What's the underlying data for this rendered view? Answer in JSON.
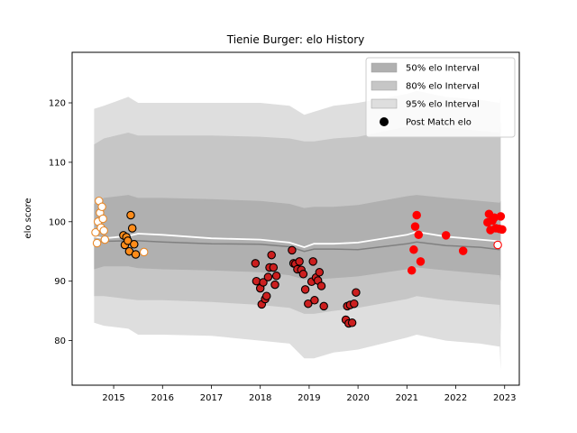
{
  "chart_data": {
    "type": "scatter",
    "title": "Tienie Burger: elo History",
    "xlabel": "",
    "ylabel": "elo score",
    "xlim": [
      2014.15,
      2023.3
    ],
    "ylim": [
      72.5,
      128.5
    ],
    "x_ticks": [
      2015,
      2016,
      2017,
      2018,
      2019,
      2020,
      2021,
      2022,
      2023
    ],
    "y_ticks": [
      80,
      90,
      100,
      110,
      120
    ],
    "legend_placement": "top-right",
    "legend": [
      {
        "label": "50% elo Interval",
        "swatch": "#b0b0b0"
      },
      {
        "label": "80% elo Interval",
        "swatch": "#c6c6c6"
      },
      {
        "label": "95% elo Interval",
        "swatch": "#dedede"
      },
      {
        "label": "Post Match elo",
        "swatch": "#000000"
      }
    ],
    "bands": {
      "x": [
        2014.6,
        2014.8,
        2015.3,
        2015.5,
        2016.0,
        2017.0,
        2018.0,
        2018.6,
        2018.9,
        2019.1,
        2019.5,
        2020.0,
        2021.0,
        2021.2,
        2021.8,
        2022.5,
        2022.9
      ],
      "p95": [
        [
          83.0,
          119.0
        ],
        [
          82.5,
          119.5
        ],
        [
          82.0,
          121.0
        ],
        [
          81.0,
          120.0
        ],
        [
          81.0,
          120.0
        ],
        [
          80.8,
          120.0
        ],
        [
          80.0,
          120.0
        ],
        [
          79.5,
          119.5
        ],
        [
          77.0,
          118.0
        ],
        [
          77.0,
          118.5
        ],
        [
          78.0,
          119.5
        ],
        [
          78.5,
          120.0
        ],
        [
          80.5,
          121.5
        ],
        [
          81.0,
          122.0
        ],
        [
          80.0,
          121.0
        ],
        [
          79.5,
          120.5
        ],
        [
          79.0,
          120.0
        ]
      ],
      "p80": [
        [
          87.5,
          113.0
        ],
        [
          87.5,
          114.0
        ],
        [
          87.0,
          115.0
        ],
        [
          86.8,
          114.5
        ],
        [
          86.8,
          114.5
        ],
        [
          86.5,
          114.5
        ],
        [
          86.0,
          114.3
        ],
        [
          85.5,
          114.0
        ],
        [
          84.5,
          113.5
        ],
        [
          84.5,
          113.5
        ],
        [
          85.0,
          114.0
        ],
        [
          85.5,
          114.3
        ],
        [
          87.0,
          116.0
        ],
        [
          87.5,
          116.5
        ],
        [
          86.8,
          115.8
        ],
        [
          86.3,
          115.3
        ],
        [
          86.0,
          115.0
        ]
      ],
      "p50": [
        [
          92.0,
          103.0
        ],
        [
          92.5,
          104.0
        ],
        [
          92.5,
          104.5
        ],
        [
          92.2,
          104.0
        ],
        [
          92.0,
          104.0
        ],
        [
          91.8,
          103.8
        ],
        [
          91.5,
          103.5
        ],
        [
          91.0,
          103.0
        ],
        [
          90.3,
          102.3
        ],
        [
          90.3,
          102.5
        ],
        [
          90.5,
          102.5
        ],
        [
          90.8,
          102.8
        ],
        [
          92.0,
          104.3
        ],
        [
          92.3,
          104.5
        ],
        [
          91.8,
          104.0
        ],
        [
          91.3,
          103.5
        ],
        [
          91.0,
          103.2
        ]
      ],
      "mean": [
        97.5,
        97.2,
        97.6,
        98.0,
        97.8,
        97.2,
        97.0,
        96.5,
        95.7,
        96.3,
        96.3,
        96.5,
        97.8,
        98.3,
        97.5,
        97.0,
        96.7
      ],
      "median": [
        96.5,
        96.7,
        96.8,
        96.8,
        96.6,
        96.3,
        96.2,
        95.8,
        95.0,
        95.4,
        95.4,
        95.3,
        96.3,
        96.6,
        96.0,
        95.7,
        95.3
      ],
      "end_spike": {
        "x": 2022.9,
        "p95": [
          75.0,
          121.0
        ],
        "p80": [
          81.0,
          117.0
        ],
        "p50": [
          90.0,
          103.5
        ]
      }
    },
    "series": [
      {
        "name": "Post Match elo",
        "points": [
          {
            "x": 2014.63,
            "y": 98.2,
            "c": "#ffffff",
            "e": "#e8892a"
          },
          {
            "x": 2014.66,
            "y": 96.4,
            "c": "#ffffff",
            "e": "#e8892a"
          },
          {
            "x": 2014.68,
            "y": 100.0,
            "c": "#ffffff",
            "e": "#e8892a"
          },
          {
            "x": 2014.7,
            "y": 103.5,
            "c": "#ffffff",
            "e": "#e8892a"
          },
          {
            "x": 2014.72,
            "y": 101.5,
            "c": "#ffffff",
            "e": "#e8892a"
          },
          {
            "x": 2014.74,
            "y": 99.0,
            "c": "#ffffff",
            "e": "#e8892a"
          },
          {
            "x": 2014.76,
            "y": 102.5,
            "c": "#ffffff",
            "e": "#e8892a"
          },
          {
            "x": 2014.78,
            "y": 100.5,
            "c": "#ffffff",
            "e": "#e8892a"
          },
          {
            "x": 2014.8,
            "y": 98.5,
            "c": "#ffffff",
            "e": "#e8892a"
          },
          {
            "x": 2014.82,
            "y": 97.0,
            "c": "#ffffff",
            "e": "#e8892a"
          },
          {
            "x": 2015.2,
            "y": 97.7,
            "c": "#ff8c1a",
            "e": "#000000"
          },
          {
            "x": 2015.23,
            "y": 96.1,
            "c": "#ff8c1a",
            "e": "#000000"
          },
          {
            "x": 2015.26,
            "y": 97.4,
            "c": "#ff8c1a",
            "e": "#000000"
          },
          {
            "x": 2015.29,
            "y": 96.8,
            "c": "#ff8c1a",
            "e": "#000000"
          },
          {
            "x": 2015.32,
            "y": 95.0,
            "c": "#ff8c1a",
            "e": "#000000"
          },
          {
            "x": 2015.35,
            "y": 101.1,
            "c": "#ff8c1a",
            "e": "#000000"
          },
          {
            "x": 2015.38,
            "y": 98.9,
            "c": "#ff8c1a",
            "e": "#000000"
          },
          {
            "x": 2015.42,
            "y": 96.2,
            "c": "#ff8c1a",
            "e": "#000000"
          },
          {
            "x": 2015.45,
            "y": 94.5,
            "c": "#ff8c1a",
            "e": "#000000"
          },
          {
            "x": 2015.62,
            "y": 94.9,
            "c": "#ffffff",
            "e": "#e8892a"
          },
          {
            "x": 2017.9,
            "y": 93.0,
            "c": "#cc1f1f",
            "e": "#000000"
          },
          {
            "x": 2017.92,
            "y": 90.0,
            "c": "#cc1f1f",
            "e": "#000000"
          },
          {
            "x": 2018.0,
            "y": 88.8,
            "c": "#cc1f1f",
            "e": "#000000"
          },
          {
            "x": 2018.03,
            "y": 86.1,
            "c": "#cc1f1f",
            "e": "#000000"
          },
          {
            "x": 2018.06,
            "y": 89.8,
            "c": "#cc1f1f",
            "e": "#000000"
          },
          {
            "x": 2018.1,
            "y": 87.0,
            "c": "#cc1f1f",
            "e": "#000000"
          },
          {
            "x": 2018.13,
            "y": 87.5,
            "c": "#cc1f1f",
            "e": "#000000"
          },
          {
            "x": 2018.16,
            "y": 90.7,
            "c": "#cc1f1f",
            "e": "#000000"
          },
          {
            "x": 2018.19,
            "y": 92.3,
            "c": "#cc1f1f",
            "e": "#000000"
          },
          {
            "x": 2018.23,
            "y": 94.4,
            "c": "#cc1f1f",
            "e": "#000000"
          },
          {
            "x": 2018.27,
            "y": 92.3,
            "c": "#cc1f1f",
            "e": "#000000"
          },
          {
            "x": 2018.3,
            "y": 89.4,
            "c": "#cc1f1f",
            "e": "#000000"
          },
          {
            "x": 2018.33,
            "y": 90.9,
            "c": "#cc1f1f",
            "e": "#000000"
          },
          {
            "x": 2018.65,
            "y": 95.2,
            "c": "#cc1f1f",
            "e": "#000000"
          },
          {
            "x": 2018.68,
            "y": 93.0,
            "c": "#cc1f1f",
            "e": "#000000"
          },
          {
            "x": 2018.72,
            "y": 92.9,
            "c": "#cc1f1f",
            "e": "#000000"
          },
          {
            "x": 2018.76,
            "y": 92.0,
            "c": "#cc1f1f",
            "e": "#000000"
          },
          {
            "x": 2018.8,
            "y": 93.3,
            "c": "#cc1f1f",
            "e": "#000000"
          },
          {
            "x": 2018.84,
            "y": 91.9,
            "c": "#cc1f1f",
            "e": "#000000"
          },
          {
            "x": 2018.88,
            "y": 91.2,
            "c": "#cc1f1f",
            "e": "#000000"
          },
          {
            "x": 2018.92,
            "y": 88.6,
            "c": "#cc1f1f",
            "e": "#000000"
          },
          {
            "x": 2018.98,
            "y": 86.2,
            "c": "#cc1f1f",
            "e": "#000000"
          },
          {
            "x": 2019.05,
            "y": 89.9,
            "c": "#cc1f1f",
            "e": "#000000"
          },
          {
            "x": 2019.08,
            "y": 93.3,
            "c": "#cc1f1f",
            "e": "#000000"
          },
          {
            "x": 2019.11,
            "y": 86.8,
            "c": "#cc1f1f",
            "e": "#000000"
          },
          {
            "x": 2019.14,
            "y": 90.6,
            "c": "#cc1f1f",
            "e": "#000000"
          },
          {
            "x": 2019.18,
            "y": 90.1,
            "c": "#cc1f1f",
            "e": "#000000"
          },
          {
            "x": 2019.21,
            "y": 91.5,
            "c": "#cc1f1f",
            "e": "#000000"
          },
          {
            "x": 2019.25,
            "y": 89.2,
            "c": "#cc1f1f",
            "e": "#000000"
          },
          {
            "x": 2019.3,
            "y": 85.8,
            "c": "#cc1f1f",
            "e": "#000000"
          },
          {
            "x": 2019.75,
            "y": 83.5,
            "c": "#cc1f1f",
            "e": "#000000"
          },
          {
            "x": 2019.78,
            "y": 85.8,
            "c": "#cc1f1f",
            "e": "#000000"
          },
          {
            "x": 2019.81,
            "y": 82.9,
            "c": "#cc1f1f",
            "e": "#000000"
          },
          {
            "x": 2019.84,
            "y": 86.0,
            "c": "#cc1f1f",
            "e": "#000000"
          },
          {
            "x": 2019.88,
            "y": 83.0,
            "c": "#cc1f1f",
            "e": "#000000"
          },
          {
            "x": 2019.92,
            "y": 86.2,
            "c": "#cc1f1f",
            "e": "#000000"
          },
          {
            "x": 2019.96,
            "y": 88.1,
            "c": "#cc1f1f",
            "e": "#000000"
          },
          {
            "x": 2021.1,
            "y": 91.8,
            "c": "#ff0000",
            "e": "#ff0000"
          },
          {
            "x": 2021.14,
            "y": 95.3,
            "c": "#ff0000",
            "e": "#ff0000"
          },
          {
            "x": 2021.17,
            "y": 99.2,
            "c": "#ff0000",
            "e": "#ff0000"
          },
          {
            "x": 2021.2,
            "y": 101.1,
            "c": "#ff0000",
            "e": "#ff0000"
          },
          {
            "x": 2021.24,
            "y": 97.8,
            "c": "#ff0000",
            "e": "#ff0000"
          },
          {
            "x": 2021.28,
            "y": 93.3,
            "c": "#ff0000",
            "e": "#ff0000"
          },
          {
            "x": 2021.8,
            "y": 97.7,
            "c": "#ff0000",
            "e": "#ff0000"
          },
          {
            "x": 2022.15,
            "y": 95.1,
            "c": "#ff0000",
            "e": "#ff0000"
          },
          {
            "x": 2022.65,
            "y": 99.9,
            "c": "#ff0000",
            "e": "#ff0000"
          },
          {
            "x": 2022.68,
            "y": 101.3,
            "c": "#ff0000",
            "e": "#ff0000"
          },
          {
            "x": 2022.71,
            "y": 98.6,
            "c": "#ff0000",
            "e": "#ff0000"
          },
          {
            "x": 2022.75,
            "y": 100.2,
            "c": "#ff0000",
            "e": "#ff0000"
          },
          {
            "x": 2022.79,
            "y": 100.7,
            "c": "#ff0000",
            "e": "#ff0000"
          },
          {
            "x": 2022.82,
            "y": 98.9,
            "c": "#ff0000",
            "e": "#ff0000"
          },
          {
            "x": 2022.86,
            "y": 96.1,
            "c": "#ffffff",
            "e": "#ff0000"
          },
          {
            "x": 2022.89,
            "y": 98.8,
            "c": "#ff0000",
            "e": "#ff0000"
          },
          {
            "x": 2022.92,
            "y": 100.9,
            "c": "#ff0000",
            "e": "#ff0000"
          },
          {
            "x": 2022.95,
            "y": 98.7,
            "c": "#ff0000",
            "e": "#ff0000"
          }
        ]
      }
    ]
  }
}
